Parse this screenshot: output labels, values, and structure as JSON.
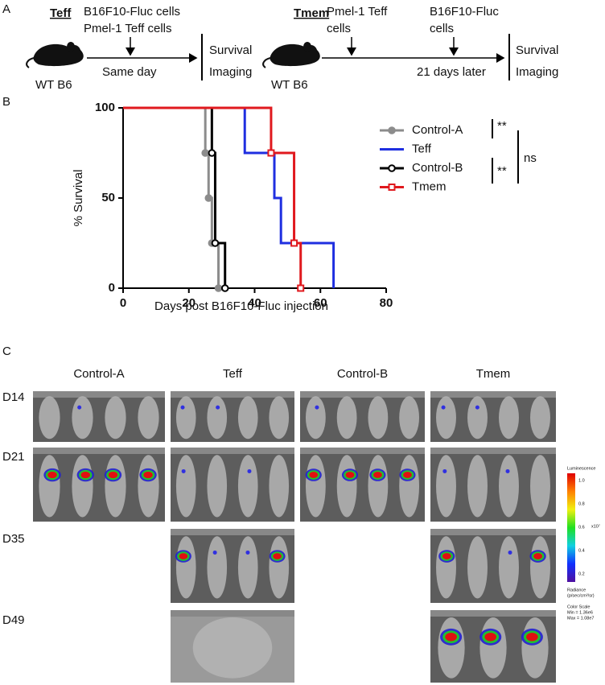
{
  "panel_a": {
    "label": "A",
    "teff": {
      "title": "Teff",
      "mouse": "WT B6",
      "top_line1": "B16F10-Fluc cells",
      "top_line2": "Pmel-1 Teff cells",
      "timing": "Same day",
      "end_line1": "Survival",
      "end_line2": "Imaging"
    },
    "tmem": {
      "title": "Tmem",
      "mouse": "WT B6",
      "first_line1": "Pmel-1 Teff",
      "first_line2": "cells",
      "second_line1": "B16F10-Fluc",
      "second_line2": "cells",
      "timing": "21 days later",
      "end_line1": "Survival",
      "end_line2": "Imaging"
    }
  },
  "panel_b": {
    "label": "B"
  },
  "chart_data": {
    "type": "step",
    "x_label": "Days post B16F10-Fluc injection",
    "y_label": "% Survival",
    "xlim": [
      0,
      80
    ],
    "xticks": [
      0,
      20,
      40,
      60,
      80
    ],
    "ylim": [
      0,
      100
    ],
    "yticks": [
      0,
      50,
      100
    ],
    "series": [
      {
        "name": "Control-A",
        "color": "#8c8c8c",
        "marker": "filled-circle",
        "x": [
          0,
          25,
          26,
          27,
          29
        ],
        "values": [
          100,
          75,
          50,
          25,
          0
        ]
      },
      {
        "name": "Teff",
        "color": "#1f2fe0",
        "marker": "none",
        "x": [
          0,
          37,
          46,
          48,
          64
        ],
        "values": [
          100,
          75,
          50,
          25,
          0
        ]
      },
      {
        "name": "Control-B",
        "color": "#000000",
        "marker": "open-circle",
        "x": [
          0,
          27,
          28,
          31
        ],
        "values": [
          100,
          75,
          25,
          0
        ]
      },
      {
        "name": "Tmem",
        "color": "#e0191e",
        "marker": "open-square",
        "x": [
          0,
          45,
          52,
          54
        ],
        "values": [
          100,
          75,
          25,
          0
        ]
      }
    ],
    "annotations": [
      "**",
      "**",
      "ns"
    ]
  },
  "panel_c": {
    "label": "C",
    "columns": [
      "Control-A",
      "Teff",
      "Control-B",
      "Tmem"
    ],
    "rows": [
      "D14",
      "D21",
      "D35",
      "D49"
    ],
    "colorbar": {
      "title": "Luminescence",
      "ticks": [
        "1.0",
        "0.8",
        "0.6",
        "0.4",
        "0.2"
      ],
      "exponent": "x10⁷",
      "unit_line1": "Radiance",
      "unit_line2": "(p/sec/cm²/sr)",
      "scale_line1": "Color Scale",
      "scale_line2": "Min = 1.36e6",
      "scale_line3": "Max = 1.08e7"
    }
  }
}
